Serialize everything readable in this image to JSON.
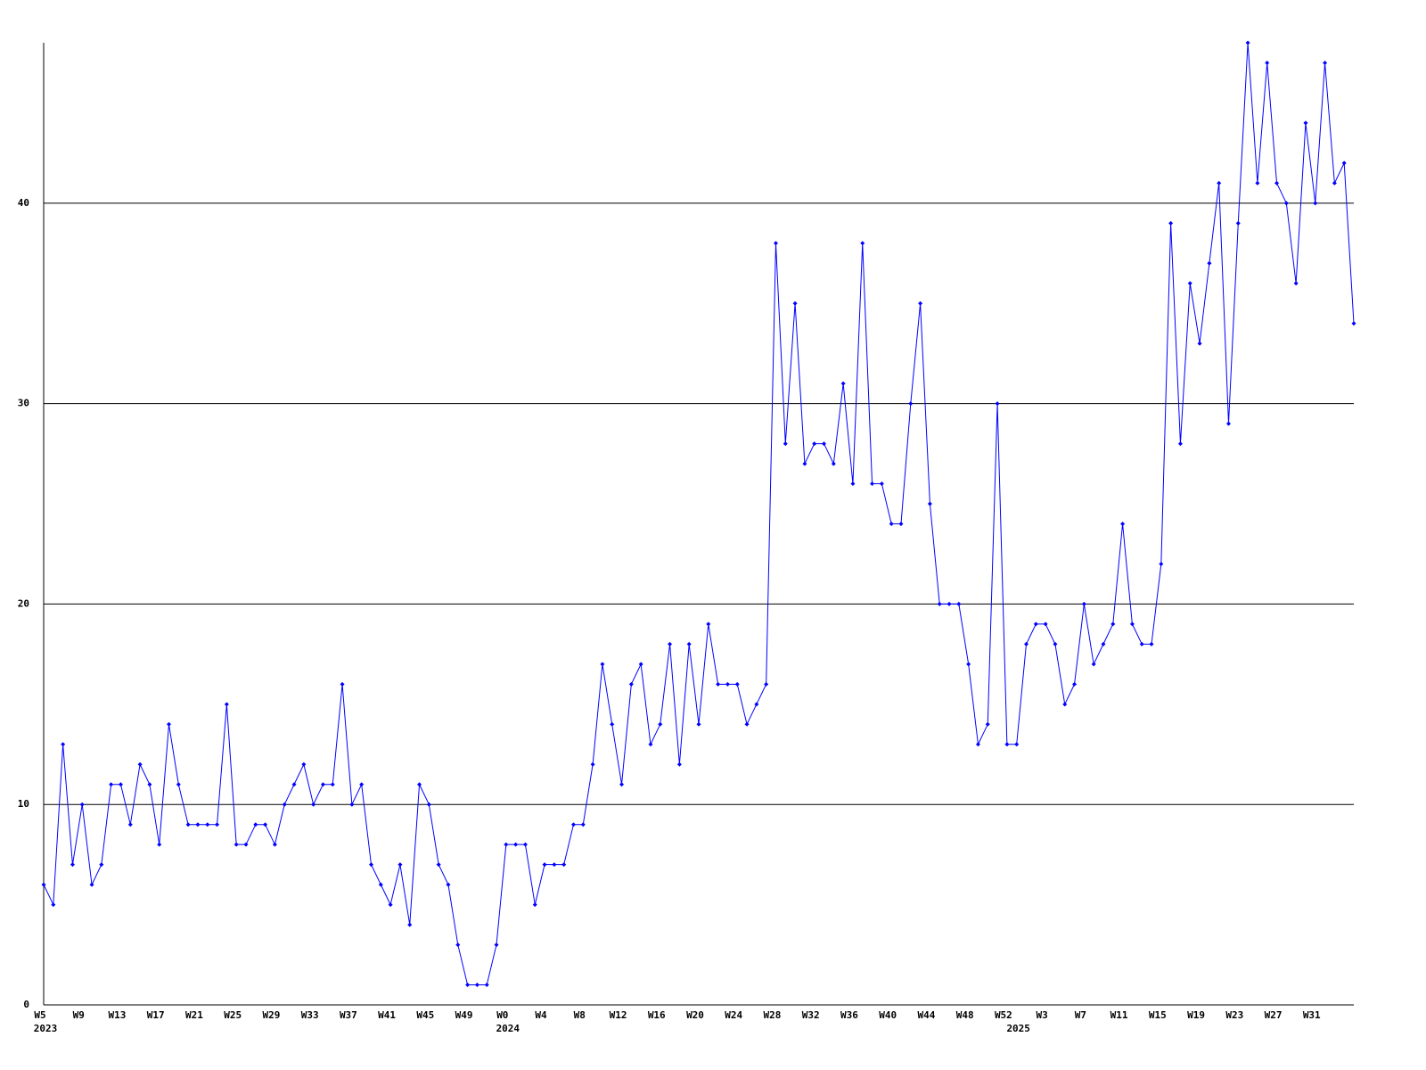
{
  "chart_data": {
    "type": "line",
    "categories": [
      "W5",
      null,
      null,
      null,
      "W9",
      null,
      null,
      null,
      "W13",
      null,
      null,
      null,
      "W17",
      null,
      null,
      null,
      "W21",
      null,
      null,
      null,
      "W25",
      null,
      null,
      null,
      "W29",
      null,
      null,
      null,
      "W33",
      null,
      null,
      null,
      "W37",
      null,
      null,
      null,
      "W41",
      null,
      null,
      null,
      "W45",
      null,
      null,
      null,
      "W49",
      null,
      null,
      null,
      "W0",
      null,
      null,
      null,
      "W4",
      null,
      null,
      null,
      "W8",
      null,
      null,
      null,
      "W12",
      null,
      null,
      null,
      "W16",
      null,
      null,
      null,
      "W20",
      null,
      null,
      null,
      "W24",
      null,
      null,
      null,
      "W28",
      null,
      null,
      null,
      "W32",
      null,
      null,
      null,
      "W36",
      null,
      null,
      null,
      "W40",
      null,
      null,
      null,
      "W44",
      null,
      null,
      null,
      "W48",
      null,
      null,
      null,
      "W52",
      null,
      null,
      null,
      "W3",
      null,
      null,
      null,
      "W7",
      null,
      null,
      null,
      "W11",
      null,
      null,
      null,
      "W15",
      null,
      null,
      null,
      "W19",
      null,
      null,
      null,
      "W23",
      null,
      null,
      null,
      "W27",
      null,
      null,
      null,
      "W31",
      null,
      null,
      null,
      null
    ],
    "years": [
      "2023",
      null,
      null,
      null,
      null,
      null,
      null,
      null,
      null,
      null,
      null,
      null,
      null,
      null,
      null,
      null,
      null,
      null,
      null,
      null,
      null,
      null,
      null,
      null,
      null,
      null,
      null,
      null,
      null,
      null,
      null,
      null,
      null,
      null,
      null,
      null,
      null,
      null,
      null,
      null,
      null,
      null,
      null,
      null,
      null,
      null,
      null,
      null,
      "2024",
      null,
      null,
      null,
      null,
      null,
      null,
      null,
      null,
      null,
      null,
      null,
      null,
      null,
      null,
      null,
      null,
      null,
      null,
      null,
      null,
      null,
      null,
      null,
      null,
      null,
      null,
      null,
      null,
      null,
      null,
      null,
      null,
      null,
      null,
      null,
      null,
      null,
      null,
      null,
      null,
      null,
      null,
      null,
      null,
      null,
      null,
      null,
      null,
      null,
      null,
      null,
      null,
      "2025",
      null,
      null,
      null,
      null,
      null,
      null,
      null,
      null,
      null,
      null,
      null,
      null,
      null,
      null,
      null,
      null,
      null,
      null,
      null,
      null,
      null,
      null,
      null,
      null,
      null,
      null,
      null,
      null,
      null,
      null,
      null,
      null,
      null,
      null,
      null
    ],
    "series": [
      {
        "color": "#0000ff",
        "values": [
          6,
          5,
          13,
          7,
          10,
          6,
          7,
          11,
          11,
          9,
          12,
          11,
          8,
          14,
          11,
          9,
          9,
          9,
          9,
          15,
          8,
          8,
          9,
          9,
          8,
          10,
          11,
          12,
          10,
          11,
          11,
          16,
          10,
          11,
          7,
          6,
          5,
          7,
          4,
          11,
          10,
          7,
          6,
          3,
          1,
          1,
          1,
          3,
          8,
          8,
          8,
          5,
          7,
          7,
          7,
          9,
          9,
          12,
          17,
          14,
          11,
          16,
          17,
          13,
          14,
          18,
          12,
          18,
          14,
          19,
          16,
          16,
          16,
          14,
          15,
          16,
          38,
          28,
          35,
          27,
          28,
          28,
          27,
          31,
          26,
          38,
          26,
          26,
          24,
          24,
          30,
          35,
          25,
          20,
          20,
          20,
          17,
          13,
          14,
          30,
          13,
          13,
          18,
          19,
          19,
          18,
          15,
          16,
          20,
          17,
          18,
          19,
          24,
          19,
          18,
          18,
          22,
          39,
          28,
          36,
          33,
          37,
          41,
          29,
          39,
          48,
          41,
          47,
          41,
          40,
          36,
          44,
          40,
          47,
          41,
          42,
          34
        ]
      }
    ],
    "ylim": [
      0,
      48
    ],
    "yticks": [
      0,
      10,
      20,
      30,
      40
    ],
    "grid": true
  }
}
